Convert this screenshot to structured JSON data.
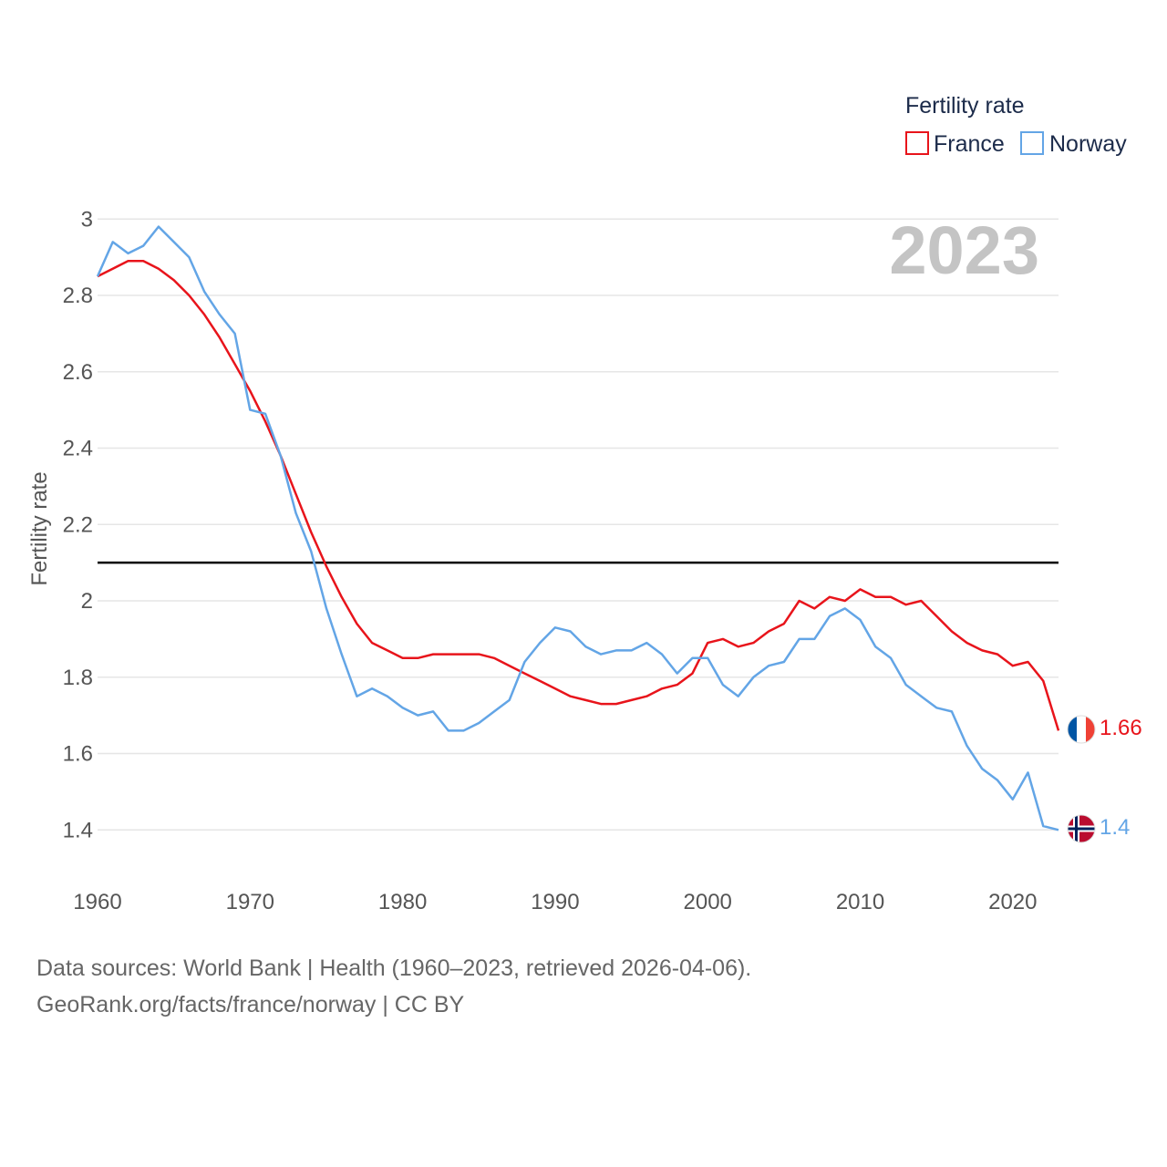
{
  "chart_data": {
    "type": "line",
    "watermark_year": "2023",
    "ylabel": "Fertility rate",
    "xlabel": "",
    "legend": {
      "title": "Fertility rate",
      "placement": "top-right"
    },
    "xlim": [
      1960,
      2023
    ],
    "ylim": [
      1.3,
      3.0
    ],
    "x_ticks": [
      1960,
      1970,
      1980,
      1990,
      2000,
      2010,
      2020
    ],
    "y_ticks": [
      1.4,
      1.6,
      1.8,
      2.0,
      2.2,
      2.4,
      2.6,
      2.8,
      3.0
    ],
    "y_tick_labels": [
      "1.4",
      "1.6",
      "1.8",
      "2",
      "2.2",
      "2.4",
      "2.6",
      "2.8",
      "3"
    ],
    "x_tick_labels": [
      "1960",
      "1970",
      "1980",
      "1990",
      "2000",
      "2010",
      "2020"
    ],
    "reference_line": {
      "y": 2.1,
      "color": "#000000"
    },
    "x": [
      1960,
      1961,
      1962,
      1963,
      1964,
      1965,
      1966,
      1967,
      1968,
      1969,
      1970,
      1971,
      1972,
      1973,
      1974,
      1975,
      1976,
      1977,
      1978,
      1979,
      1980,
      1981,
      1982,
      1983,
      1984,
      1985,
      1986,
      1987,
      1988,
      1989,
      1990,
      1991,
      1992,
      1993,
      1994,
      1995,
      1996,
      1997,
      1998,
      1999,
      2000,
      2001,
      2002,
      2003,
      2004,
      2005,
      2006,
      2007,
      2008,
      2009,
      2010,
      2011,
      2012,
      2013,
      2014,
      2015,
      2016,
      2017,
      2018,
      2019,
      2020,
      2021,
      2022,
      2023
    ],
    "series": [
      {
        "name": "France",
        "color": "#e8141b",
        "end_label": "1.66",
        "flag": "france",
        "values": [
          2.85,
          2.87,
          2.89,
          2.89,
          2.87,
          2.84,
          2.8,
          2.75,
          2.69,
          2.62,
          2.55,
          2.47,
          2.38,
          2.28,
          2.18,
          2.09,
          2.01,
          1.94,
          1.89,
          1.87,
          1.85,
          1.85,
          1.86,
          1.86,
          1.86,
          1.86,
          1.85,
          1.83,
          1.81,
          1.79,
          1.77,
          1.75,
          1.74,
          1.73,
          1.73,
          1.74,
          1.75,
          1.77,
          1.78,
          1.81,
          1.89,
          1.9,
          1.88,
          1.89,
          1.92,
          1.94,
          2.0,
          1.98,
          2.01,
          2.0,
          2.03,
          2.01,
          2.01,
          1.99,
          2.0,
          1.96,
          1.92,
          1.89,
          1.87,
          1.86,
          1.83,
          1.84,
          1.79,
          1.66
        ]
      },
      {
        "name": "Norway",
        "color": "#63a5e6",
        "end_label": "1.4",
        "flag": "norway",
        "values": [
          2.85,
          2.94,
          2.91,
          2.93,
          2.98,
          2.94,
          2.9,
          2.81,
          2.75,
          2.7,
          2.5,
          2.49,
          2.38,
          2.23,
          2.13,
          1.98,
          1.86,
          1.75,
          1.77,
          1.75,
          1.72,
          1.7,
          1.71,
          1.66,
          1.66,
          1.68,
          1.71,
          1.74,
          1.84,
          1.89,
          1.93,
          1.92,
          1.88,
          1.86,
          1.87,
          1.87,
          1.89,
          1.86,
          1.81,
          1.85,
          1.85,
          1.78,
          1.75,
          1.8,
          1.83,
          1.84,
          1.9,
          1.9,
          1.96,
          1.98,
          1.95,
          1.88,
          1.85,
          1.78,
          1.75,
          1.72,
          1.71,
          1.62,
          1.56,
          1.53,
          1.48,
          1.55,
          1.41,
          1.4
        ]
      }
    ]
  },
  "footer": {
    "line1": "Data sources: World Bank | Health (1960–2023, retrieved 2026-04-06).",
    "line2": "GeoRank.org/facts/france/norway | CC BY"
  }
}
